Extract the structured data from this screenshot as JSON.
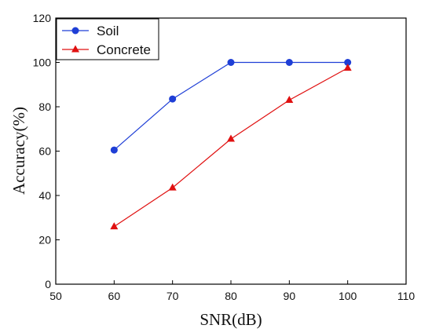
{
  "chart_data": {
    "type": "line",
    "title": "",
    "xlabel": "SNR(dB)",
    "ylabel": "Accuracy(%)",
    "xlim": [
      50,
      110
    ],
    "ylim": [
      0,
      120
    ],
    "x_ticks": [
      50,
      60,
      70,
      80,
      90,
      100,
      110
    ],
    "y_ticks": [
      0,
      20,
      40,
      60,
      80,
      100,
      120
    ],
    "legend_position": "top-left",
    "grid": false,
    "series": [
      {
        "name": "Soil",
        "color": "#1f3fd6",
        "marker": "circle",
        "x": [
          60,
          70,
          80,
          90,
          100
        ],
        "y": [
          60.5,
          83.5,
          100,
          100,
          100
        ]
      },
      {
        "name": "Concrete",
        "color": "#e01010",
        "marker": "triangle",
        "x": [
          60,
          70,
          80,
          90,
          100
        ],
        "y": [
          26,
          43.5,
          65.5,
          83,
          97.5
        ]
      }
    ]
  }
}
